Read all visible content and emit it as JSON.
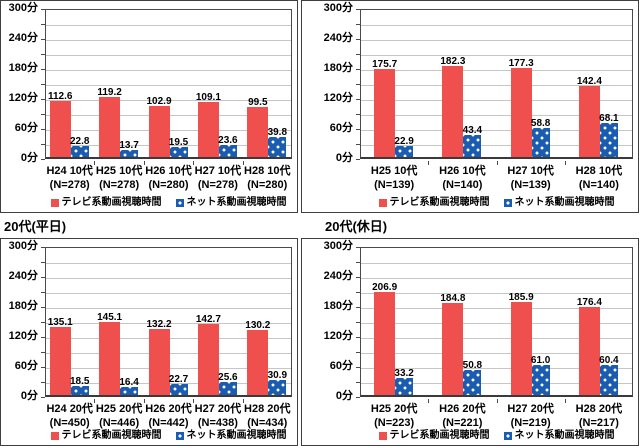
{
  "y_axis": {
    "unit": "分",
    "min": 0,
    "max": 300,
    "major_step": 60,
    "minor_step": 30,
    "tick_labels": [
      "0分",
      "60分",
      "120分",
      "180分",
      "240分",
      "300分"
    ]
  },
  "legend": {
    "items": [
      {
        "series": "tv",
        "label": "テレビ系動画視聴時間"
      },
      {
        "series": "net",
        "label": "ネット系動画視聴時間"
      }
    ]
  },
  "colors": {
    "tv": "#ef4f4d",
    "net": "#1a5cb0",
    "grid": "#c6c6c6",
    "plot_border": "#4a4a4a",
    "box_border": "#3f3f3f",
    "text": "#000000"
  },
  "chart_data": [
    {
      "type": "bar",
      "position": "top-left",
      "title": "",
      "categories": [
        "H24 10代",
        "H25 10代",
        "H26 10代",
        "H27 10代",
        "H28 10代"
      ],
      "sample_sizes": [
        "(N=278)",
        "(N=278)",
        "(N=280)",
        "(N=278)",
        "(N=280)"
      ],
      "series": [
        {
          "name": "テレビ系動画視聴時間",
          "values": [
            112.6,
            119.2,
            102.9,
            109.1,
            99.5
          ]
        },
        {
          "name": "ネット系動画視聴時間",
          "values": [
            22.8,
            13.7,
            19.5,
            23.6,
            39.8
          ]
        }
      ],
      "ylim": [
        0,
        300
      ],
      "grid": true,
      "legend_position": "bottom"
    },
    {
      "type": "bar",
      "position": "top-right",
      "title": "",
      "categories": [
        "H25 10代",
        "H26 10代",
        "H27 10代",
        "H28 10代"
      ],
      "sample_sizes": [
        "(N=139)",
        "(N=140)",
        "(N=139)",
        "(N=140)"
      ],
      "series": [
        {
          "name": "テレビ系動画視聴時間",
          "values": [
            175.7,
            182.3,
            177.3,
            142.4
          ]
        },
        {
          "name": "ネット系動画視聴時間",
          "values": [
            22.9,
            43.4,
            58.8,
            68.1
          ]
        }
      ],
      "ylim": [
        0,
        300
      ],
      "grid": true,
      "legend_position": "bottom"
    },
    {
      "type": "bar",
      "position": "bottom-left",
      "title": "20代(平日)",
      "categories": [
        "H24 20代",
        "H25 20代",
        "H26 20代",
        "H27 20代",
        "H28 20代"
      ],
      "sample_sizes": [
        "(N=450)",
        "(N=446)",
        "(N=442)",
        "(N=438)",
        "(N=434)"
      ],
      "series": [
        {
          "name": "テレビ系動画視聴時間",
          "values": [
            135.1,
            145.1,
            132.2,
            142.7,
            130.2
          ]
        },
        {
          "name": "ネット系動画視聴時間",
          "values": [
            18.5,
            16.4,
            22.7,
            25.6,
            30.9
          ]
        }
      ],
      "ylim": [
        0,
        300
      ],
      "grid": true,
      "legend_position": "bottom"
    },
    {
      "type": "bar",
      "position": "bottom-right",
      "title": "20代(休日)",
      "categories": [
        "H25 20代",
        "H26 20代",
        "H27 20代",
        "H28 20代"
      ],
      "sample_sizes": [
        "(N=223)",
        "(N=221)",
        "(N=219)",
        "(N=217)"
      ],
      "series": [
        {
          "name": "テレビ系動画視聴時間",
          "values": [
            206.9,
            184.8,
            185.9,
            176.4
          ]
        },
        {
          "name": "ネット系動画視聴時間",
          "values": [
            33.2,
            50.8,
            61.0,
            60.4
          ]
        }
      ],
      "ylim": [
        0,
        300
      ],
      "grid": true,
      "legend_position": "bottom"
    }
  ]
}
